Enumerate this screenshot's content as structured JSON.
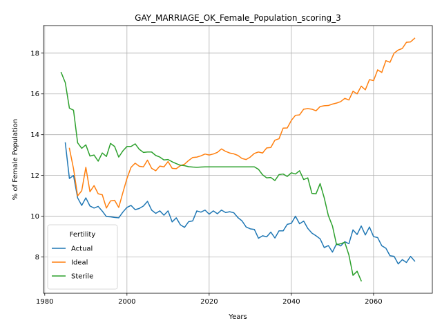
{
  "chart_data": {
    "type": "line",
    "title": "GAY_MARRIAGE_OK_Female_Population_scoring_3",
    "xlabel": "Years",
    "ylabel": "% of Female Population",
    "xlim": [
      1979.7,
      2074.3
    ],
    "ylim": [
      6.22,
      19.35
    ],
    "xticks": [
      1980,
      2000,
      2020,
      2040,
      2060
    ],
    "yticks": [
      8,
      10,
      12,
      14,
      16,
      18
    ],
    "grid": true,
    "legend": {
      "title": "Fertility",
      "placement": "lower-left"
    },
    "series": [
      {
        "name": "Actual",
        "color": "#1f77b4",
        "x": [
          1985,
          1986,
          1987,
          1988,
          1989,
          1990,
          1991,
          1992,
          1993,
          1994,
          1995,
          1996,
          1997,
          1998,
          1999,
          2000,
          2001,
          2002,
          2003,
          2004,
          2005,
          2006,
          2007,
          2008,
          2009,
          2010,
          2011,
          2012,
          2013,
          2014,
          2015,
          2016,
          2017,
          2018,
          2019,
          2020,
          2021,
          2022,
          2023,
          2024,
          2025,
          2026,
          2027,
          2028,
          2029,
          2030,
          2031,
          2032,
          2033,
          2034,
          2035,
          2036,
          2037,
          2038,
          2039,
          2040,
          2041,
          2042,
          2043,
          2044,
          2045,
          2046,
          2047,
          2048,
          2049,
          2050,
          2051,
          2052,
          2053,
          2054,
          2055,
          2056,
          2057,
          2058,
          2059,
          2060,
          2061,
          2062,
          2063,
          2064,
          2065,
          2066,
          2067,
          2068,
          2069,
          2070
        ],
        "y": [
          13.6,
          11.85,
          12.0,
          10.9,
          10.53,
          10.9,
          10.5,
          10.4,
          10.48,
          10.25,
          9.98,
          9.97,
          9.94,
          9.92,
          10.2,
          10.43,
          10.53,
          10.32,
          10.38,
          10.5,
          10.73,
          10.3,
          10.14,
          10.26,
          10.05,
          10.26,
          9.72,
          9.92,
          9.58,
          9.45,
          9.73,
          9.77,
          10.26,
          10.2,
          10.3,
          10.1,
          10.26,
          10.12,
          10.3,
          10.18,
          10.22,
          10.17,
          9.93,
          9.77,
          9.47,
          9.38,
          9.35,
          8.92,
          9.04,
          8.99,
          9.22,
          8.93,
          9.28,
          9.28,
          9.6,
          9.65,
          10.0,
          9.63,
          9.76,
          9.4,
          9.17,
          9.04,
          8.89,
          8.46,
          8.56,
          8.24,
          8.65,
          8.54,
          8.75,
          8.65,
          9.33,
          9.1,
          9.52,
          9.08,
          9.47,
          9.0,
          8.95,
          8.55,
          8.43,
          8.06,
          8.03,
          7.66,
          7.87,
          7.73,
          8.03,
          7.8
        ]
      },
      {
        "name": "Ideal",
        "color": "#ff7f0e",
        "x": [
          1986,
          1987,
          1988,
          1989,
          1990,
          1991,
          1992,
          1993,
          1994,
          1995,
          1996,
          1997,
          1998,
          1999,
          2000,
          2001,
          2002,
          2003,
          2004,
          2005,
          2006,
          2007,
          2008,
          2009,
          2010,
          2011,
          2012,
          2013,
          2014,
          2015,
          2016,
          2017,
          2018,
          2019,
          2020,
          2021,
          2022,
          2023,
          2024,
          2025,
          2026,
          2027,
          2028,
          2029,
          2030,
          2031,
          2032,
          2033,
          2034,
          2035,
          2036,
          2037,
          2038,
          2039,
          2040,
          2041,
          2042,
          2043,
          2044,
          2045,
          2046,
          2047,
          2048,
          2049,
          2050,
          2051,
          2052,
          2053,
          2054,
          2055,
          2056,
          2057,
          2058,
          2059,
          2060,
          2061,
          2062,
          2063,
          2064,
          2065,
          2066,
          2067,
          2068,
          2069,
          2070
        ],
        "y": [
          13.33,
          12.33,
          11.0,
          11.25,
          12.4,
          11.2,
          11.5,
          11.1,
          11.05,
          10.4,
          10.75,
          10.78,
          10.43,
          11.15,
          11.85,
          12.4,
          12.6,
          12.45,
          12.42,
          12.75,
          12.35,
          12.23,
          12.46,
          12.42,
          12.68,
          12.35,
          12.33,
          12.48,
          12.55,
          12.73,
          12.88,
          12.9,
          12.96,
          13.05,
          13.0,
          13.05,
          13.13,
          13.3,
          13.18,
          13.1,
          13.06,
          12.98,
          12.83,
          12.78,
          12.9,
          13.08,
          13.15,
          13.1,
          13.35,
          13.37,
          13.73,
          13.8,
          14.32,
          14.33,
          14.7,
          14.95,
          14.97,
          15.25,
          15.28,
          15.25,
          15.17,
          15.38,
          15.42,
          15.43,
          15.5,
          15.55,
          15.62,
          15.78,
          15.7,
          16.13,
          16.0,
          16.38,
          16.2,
          16.7,
          16.65,
          17.18,
          17.05,
          17.63,
          17.55,
          18.0,
          18.15,
          18.23,
          18.53,
          18.55,
          18.73
        ]
      },
      {
        "name": "Sterile",
        "color": "#2ca02c",
        "x": [
          1984,
          1985,
          1986,
          1987,
          1988,
          1989,
          1990,
          1991,
          1992,
          1993,
          1994,
          1995,
          1996,
          1997,
          1998,
          1999,
          2000,
          2001,
          2002,
          2003,
          2004,
          2005,
          2006,
          2007,
          2008,
          2009,
          2010,
          2011,
          2012,
          2013,
          2014,
          2015,
          2016,
          2017,
          2018,
          2019,
          2020,
          2021,
          2022,
          2023,
          2024,
          2025,
          2026,
          2027,
          2028,
          2029,
          2030,
          2031,
          2032,
          2033,
          2034,
          2035,
          2036,
          2037,
          2038,
          2039,
          2040,
          2041,
          2042,
          2043,
          2044,
          2045,
          2046,
          2047,
          2048,
          2049,
          2050,
          2051,
          2052,
          2053,
          2054,
          2055,
          2056,
          2057
        ],
        "y": [
          17.05,
          16.55,
          15.3,
          15.2,
          13.6,
          13.33,
          13.5,
          12.95,
          13.0,
          12.7,
          13.1,
          12.93,
          13.57,
          13.42,
          12.9,
          13.2,
          13.42,
          13.42,
          13.55,
          13.28,
          13.13,
          13.15,
          13.15,
          12.98,
          12.9,
          12.76,
          12.78,
          12.67,
          12.58,
          12.5,
          12.48,
          12.43,
          12.41,
          12.4,
          12.41,
          12.42,
          12.42,
          12.42,
          12.42,
          12.42,
          12.42,
          12.42,
          12.42,
          12.42,
          12.42,
          12.42,
          12.42,
          12.42,
          12.3,
          12.03,
          11.88,
          11.9,
          11.75,
          12.04,
          12.07,
          11.95,
          12.13,
          12.07,
          12.23,
          11.8,
          11.88,
          11.12,
          11.1,
          11.6,
          10.9,
          10.03,
          9.52,
          8.6,
          8.65,
          8.72,
          8.1,
          7.1,
          7.3,
          6.83
        ]
      }
    ]
  }
}
